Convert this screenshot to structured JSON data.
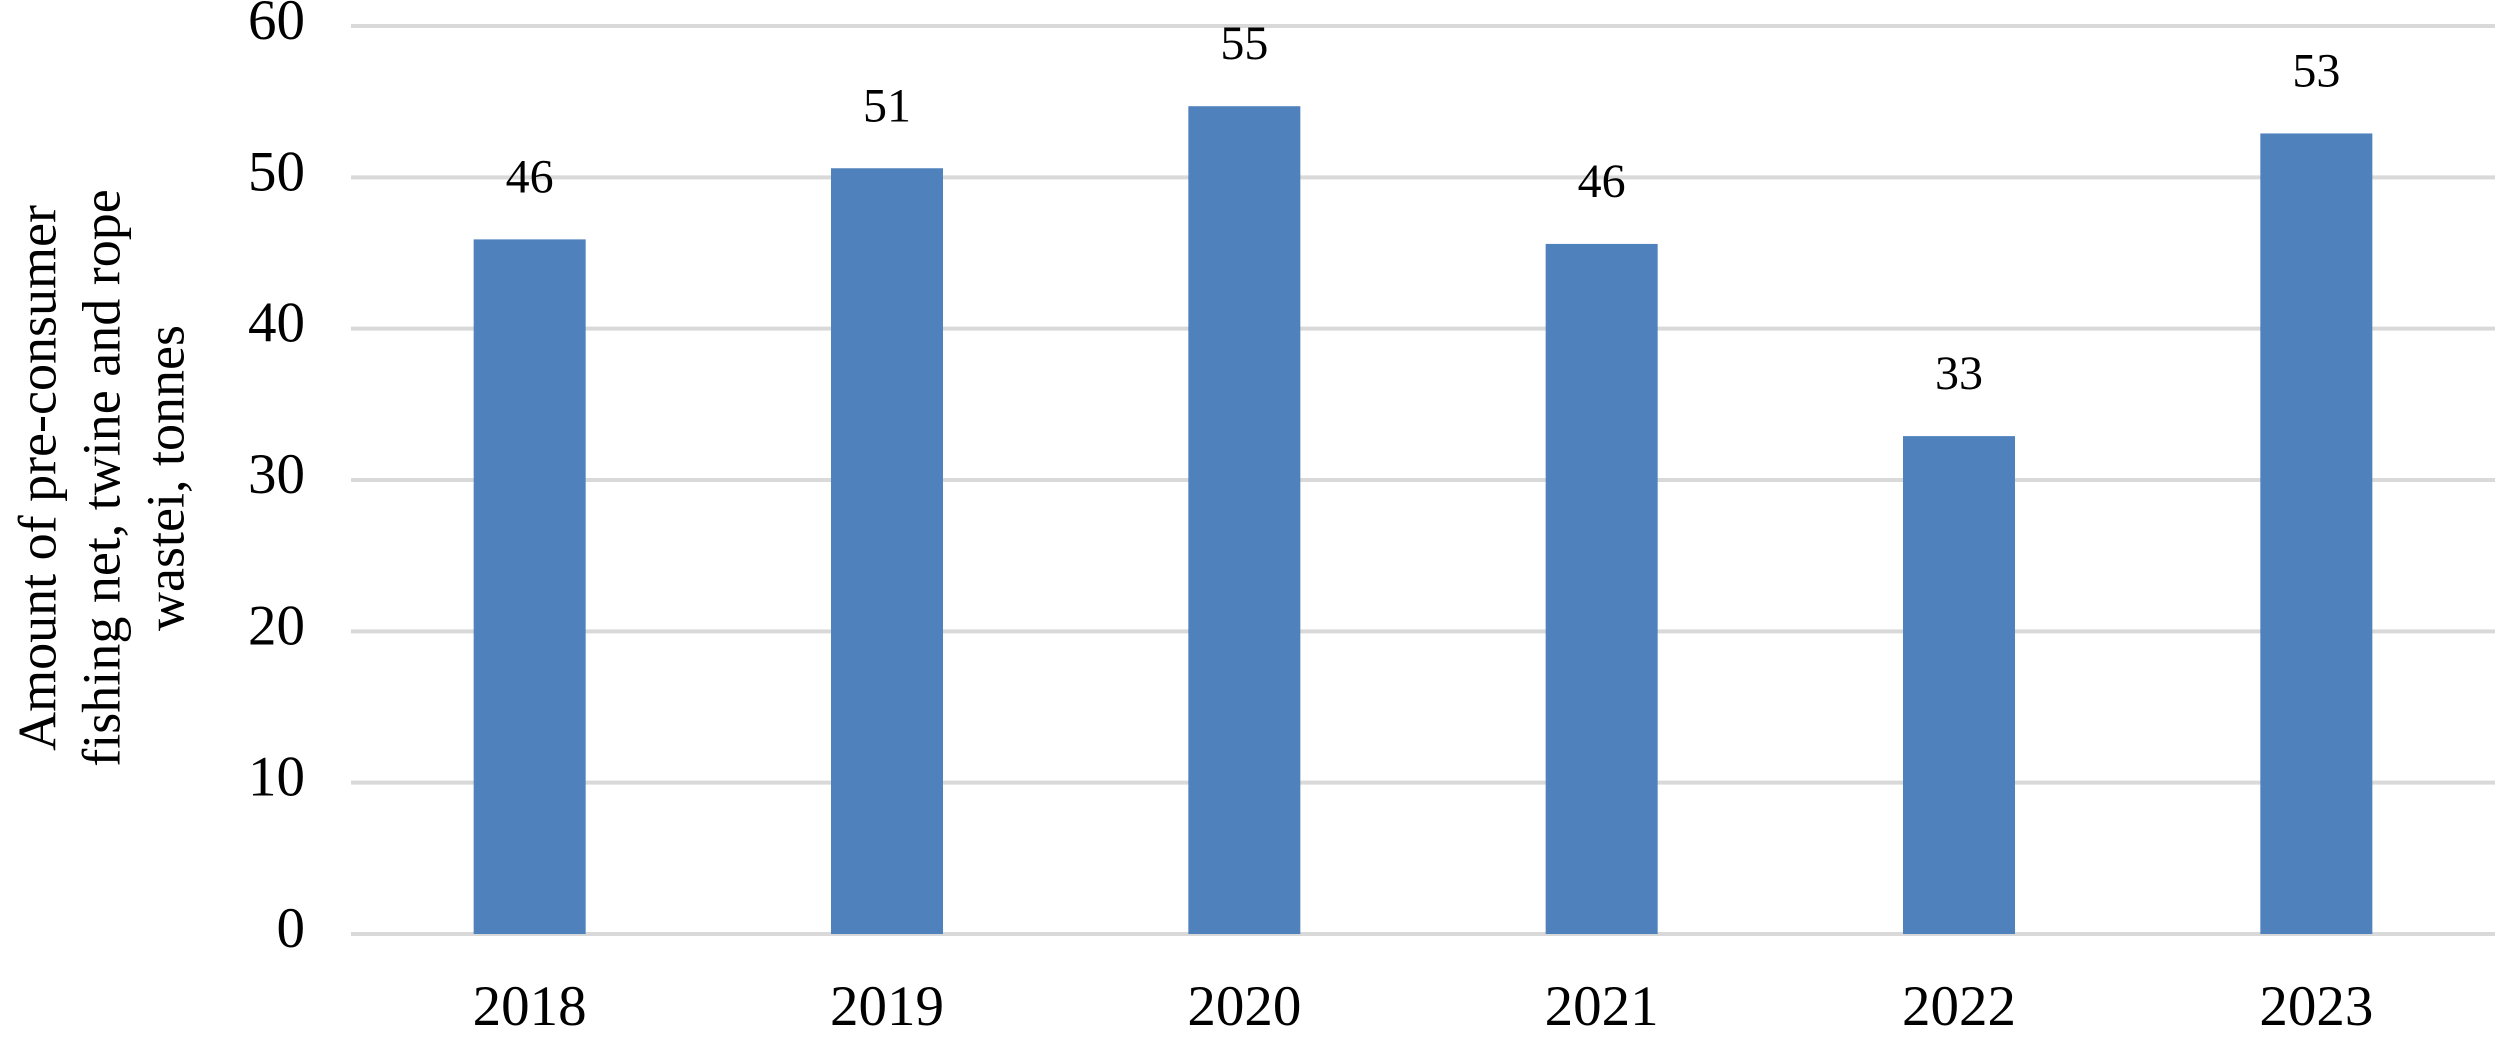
{
  "chart_data": {
    "type": "bar",
    "y_label": [
      "Amount of pre-consumer",
      "fishing net, twine and rope",
      "wastei, tonnes"
    ],
    "categories": [
      "2018",
      "2019",
      "2020",
      "2021",
      "2022",
      "2023"
    ],
    "values": [
      45.9,
      50.6,
      54.7,
      45.6,
      32.9,
      52.9
    ],
    "value_labels": [
      "46",
      "51",
      "55",
      "46",
      "33",
      "53"
    ],
    "color": "#4f81bd",
    "ylim": [
      0,
      60
    ],
    "yticks": [
      0,
      10,
      20,
      30,
      40,
      50,
      60
    ],
    "grid": true
  }
}
